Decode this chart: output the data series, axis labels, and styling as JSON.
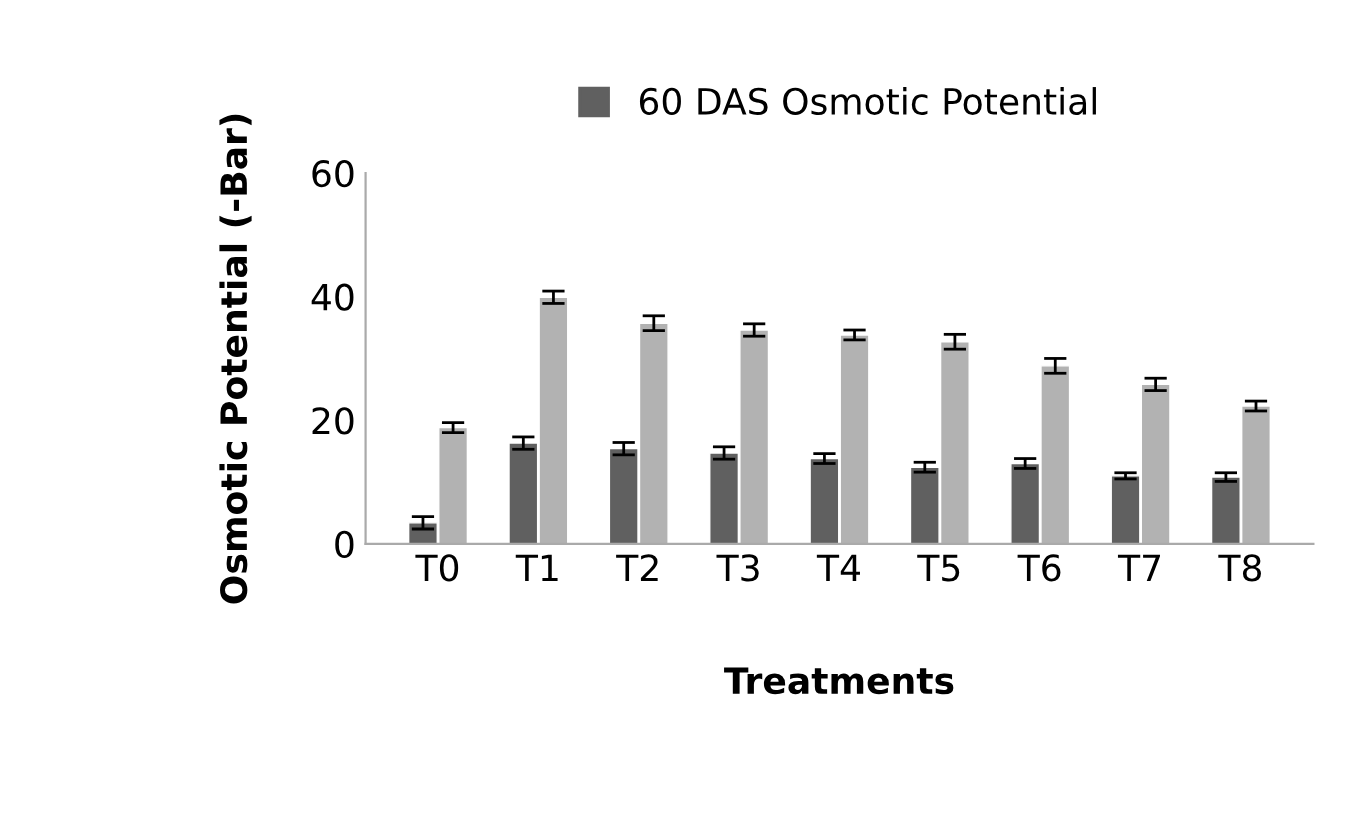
{
  "chart_data": {
    "type": "bar",
    "xlabel": "Treatments",
    "ylabel": "Osmotic Potential (-Bar)",
    "categories": [
      "T0",
      "T1",
      "T2",
      "T3",
      "T4",
      "T5",
      "T6",
      "T7",
      "T8"
    ],
    "series": [
      {
        "name": "60 DAS Osmotic Potential",
        "color": "#606060",
        "values": [
          3.4,
          16.3,
          15.4,
          14.7,
          13.8,
          12.4,
          13,
          11,
          10.8
        ],
        "errors": [
          1,
          1,
          1,
          1,
          0.8,
          0.8,
          0.8,
          0.5,
          0.7
        ]
      },
      {
        "color": "#b2b2b2",
        "values": [
          18.8,
          39.9,
          35.7,
          34.6,
          33.8,
          32.7,
          28.8,
          25.8,
          22.3
        ],
        "errors": [
          0.8,
          1,
          1.2,
          1,
          0.8,
          1.2,
          1.2,
          1,
          0.8
        ]
      }
    ],
    "ylim": [
      0,
      60
    ],
    "yticks": [
      0,
      20,
      40,
      60
    ],
    "grid": false,
    "legend": "top"
  }
}
